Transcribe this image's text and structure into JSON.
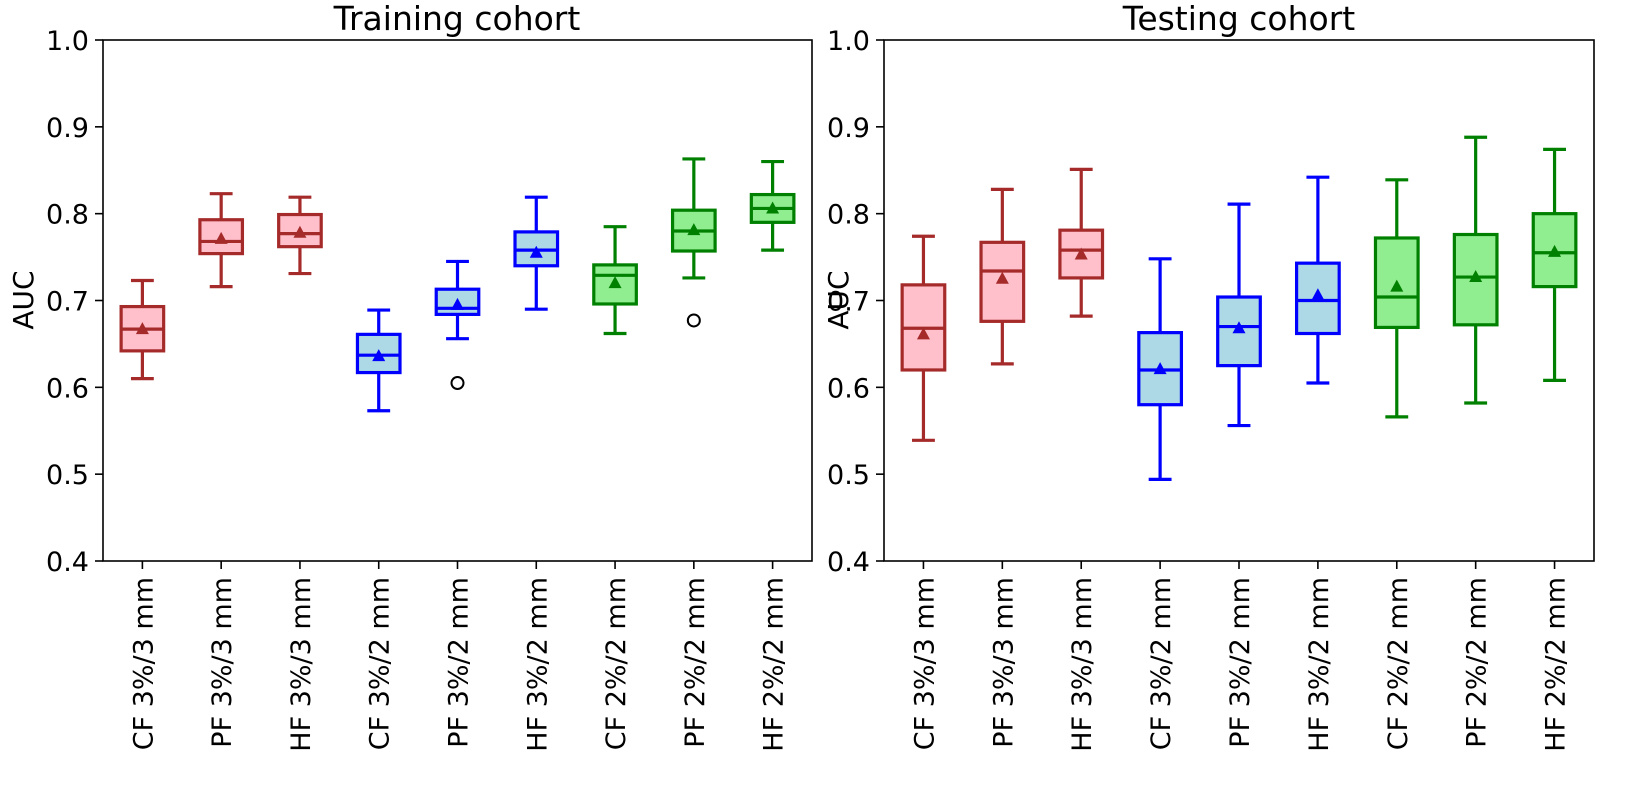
{
  "chart_data": [
    {
      "type": "box",
      "title": "Training cohort",
      "ylabel": "AUC",
      "xlabel": "",
      "ylim": [
        0.4,
        1.0
      ],
      "yticks": [
        "0.4",
        "0.5",
        "0.6",
        "0.7",
        "0.8",
        "0.9",
        "1.0"
      ],
      "categories": [
        "CF 3%/3 mm",
        "PF 3%/3 mm",
        "HF 3%/3 mm",
        "CF 3%/2 mm",
        "PF 3%/2 mm",
        "HF 3%/2 mm",
        "CF 2%/2 mm",
        "PF 2%/2 mm",
        "HF 2%/2 mm"
      ],
      "groups": [
        "red",
        "red",
        "red",
        "blue",
        "blue",
        "blue",
        "green",
        "green",
        "green"
      ],
      "boxes": [
        {
          "whislo": 0.61,
          "q1": 0.642,
          "med": 0.667,
          "q3": 0.693,
          "whishi": 0.723,
          "mean": 0.667,
          "fliers": []
        },
        {
          "whislo": 0.716,
          "q1": 0.754,
          "med": 0.768,
          "q3": 0.793,
          "whishi": 0.823,
          "mean": 0.771,
          "fliers": []
        },
        {
          "whislo": 0.731,
          "q1": 0.762,
          "med": 0.777,
          "q3": 0.799,
          "whishi": 0.819,
          "mean": 0.778,
          "fliers": []
        },
        {
          "whislo": 0.573,
          "q1": 0.617,
          "med": 0.637,
          "q3": 0.661,
          "whishi": 0.689,
          "mean": 0.636,
          "fliers": []
        },
        {
          "whislo": 0.656,
          "q1": 0.684,
          "med": 0.691,
          "q3": 0.713,
          "whishi": 0.745,
          "mean": 0.695,
          "fliers": [
            0.605
          ]
        },
        {
          "whislo": 0.69,
          "q1": 0.74,
          "med": 0.758,
          "q3": 0.779,
          "whishi": 0.819,
          "mean": 0.755,
          "fliers": []
        },
        {
          "whislo": 0.662,
          "q1": 0.696,
          "med": 0.729,
          "q3": 0.741,
          "whishi": 0.785,
          "mean": 0.72,
          "fliers": []
        },
        {
          "whislo": 0.726,
          "q1": 0.757,
          "med": 0.78,
          "q3": 0.804,
          "whishi": 0.863,
          "mean": 0.781,
          "fliers": [
            0.677
          ]
        },
        {
          "whislo": 0.758,
          "q1": 0.79,
          "med": 0.806,
          "q3": 0.822,
          "whishi": 0.86,
          "mean": 0.806,
          "fliers": []
        }
      ]
    },
    {
      "type": "box",
      "title": "Testing cohort",
      "ylabel": "AUC",
      "xlabel": "",
      "ylim": [
        0.4,
        1.0
      ],
      "yticks": [
        "0.4",
        "0.5",
        "0.6",
        "0.7",
        "0.8",
        "0.9",
        "1.0"
      ],
      "categories": [
        "CF 3%/3 mm",
        "PF 3%/3 mm",
        "HF 3%/3 mm",
        "CF 3%/2 mm",
        "PF 3%/2 mm",
        "HF 3%/2 mm",
        "CF 2%/2 mm",
        "PF 2%/2 mm",
        "HF 2%/2 mm"
      ],
      "groups": [
        "red",
        "red",
        "red",
        "blue",
        "blue",
        "blue",
        "green",
        "green",
        "green"
      ],
      "boxes": [
        {
          "whislo": 0.539,
          "q1": 0.62,
          "med": 0.668,
          "q3": 0.718,
          "whishi": 0.774,
          "mean": 0.661,
          "fliers": []
        },
        {
          "whislo": 0.627,
          "q1": 0.676,
          "med": 0.734,
          "q3": 0.767,
          "whishi": 0.828,
          "mean": 0.725,
          "fliers": []
        },
        {
          "whislo": 0.682,
          "q1": 0.726,
          "med": 0.758,
          "q3": 0.781,
          "whishi": 0.851,
          "mean": 0.753,
          "fliers": []
        },
        {
          "whislo": 0.494,
          "q1": 0.58,
          "med": 0.62,
          "q3": 0.663,
          "whishi": 0.748,
          "mean": 0.621,
          "fliers": []
        },
        {
          "whislo": 0.556,
          "q1": 0.625,
          "med": 0.67,
          "q3": 0.704,
          "whishi": 0.811,
          "mean": 0.668,
          "fliers": []
        },
        {
          "whislo": 0.605,
          "q1": 0.662,
          "med": 0.7,
          "q3": 0.743,
          "whishi": 0.842,
          "mean": 0.706,
          "fliers": []
        },
        {
          "whislo": 0.566,
          "q1": 0.669,
          "med": 0.704,
          "q3": 0.772,
          "whishi": 0.839,
          "mean": 0.716,
          "fliers": []
        },
        {
          "whislo": 0.582,
          "q1": 0.672,
          "med": 0.727,
          "q3": 0.776,
          "whishi": 0.888,
          "mean": 0.727,
          "fliers": []
        },
        {
          "whislo": 0.608,
          "q1": 0.716,
          "med": 0.755,
          "q3": 0.8,
          "whishi": 0.874,
          "mean": 0.756,
          "fliers": []
        }
      ]
    }
  ],
  "colors": {
    "red": {
      "edge": "#a52a2a",
      "fill": "#ffc0cb"
    },
    "blue": {
      "edge": "#0000ff",
      "fill": "#add8e6"
    },
    "green": {
      "edge": "#008000",
      "fill": "#90ee90"
    },
    "flier": "#000000",
    "axis": "#000000"
  }
}
